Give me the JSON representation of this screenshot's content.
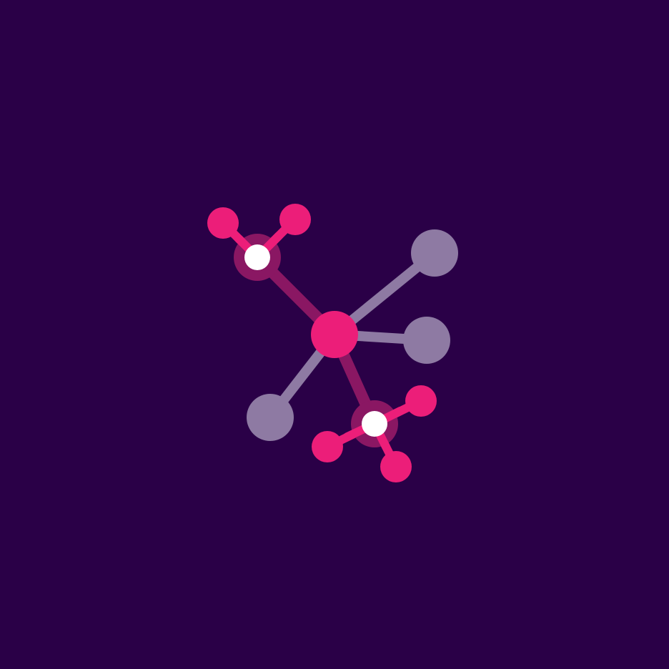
{
  "colors": {
    "background": "#2a0047",
    "accent": "#ec1e79",
    "accent_dark": "#8a1763",
    "muted": "#8e7aa3",
    "white": "#ffffff"
  },
  "icon": "molecule-network-icon"
}
